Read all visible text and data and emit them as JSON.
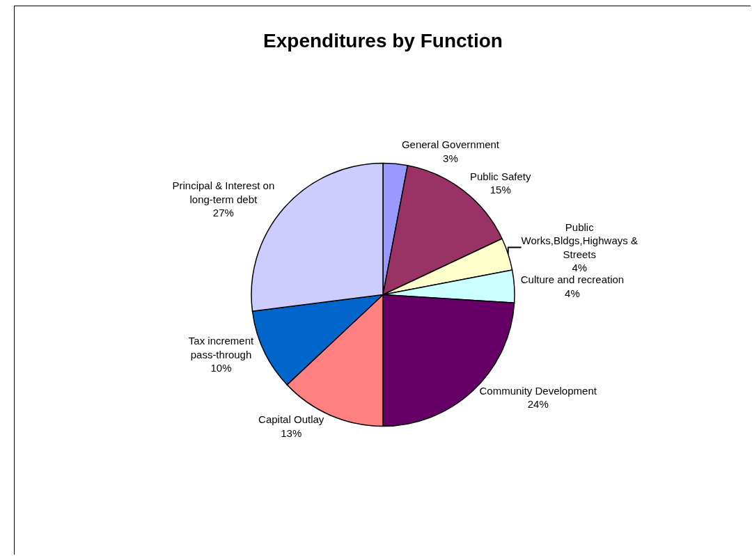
{
  "chart_data": {
    "type": "pie",
    "title": "Expenditures by Function",
    "categories": [
      "General Government",
      "Public Safety",
      "Public Works,Bldgs,Highways & Streets",
      "Culture and recreation",
      "Community Development",
      "Capital Outlay",
      "Tax increment pass-through",
      "Principal & Interest on long-term debt"
    ],
    "values": [
      3,
      15,
      4,
      4,
      24,
      13,
      10,
      27
    ],
    "value_labels": [
      "3%",
      "15%",
      "4%",
      "4%",
      "24%",
      "13%",
      "10%",
      "27%"
    ],
    "colors": [
      "#9999ff",
      "#993366",
      "#ffffcc",
      "#ccffff",
      "#660066",
      "#ff8080",
      "#0066cc",
      "#ccccff"
    ]
  }
}
